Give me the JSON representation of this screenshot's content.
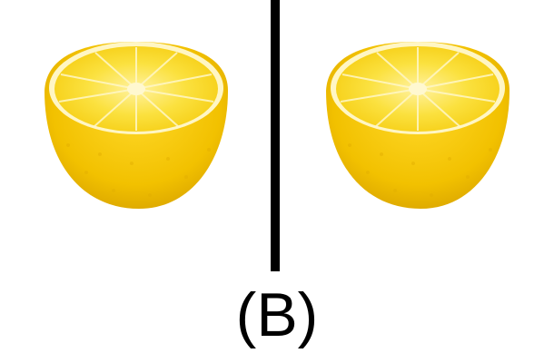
{
  "caption": "(B)",
  "colors": {
    "background": "#ffffff",
    "divider": "#000000",
    "caption": "#000000",
    "lemon_peel": "#f2c400",
    "lemon_flesh": "#fbe24a"
  },
  "images": [
    {
      "name": "lemon-half-left",
      "depicts": "lemon-half-icon"
    },
    {
      "name": "lemon-half-right",
      "depicts": "lemon-half-icon"
    }
  ]
}
